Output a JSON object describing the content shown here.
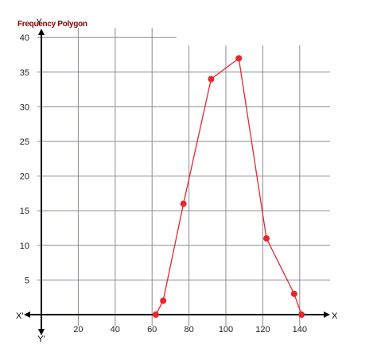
{
  "chart_data": {
    "type": "line",
    "title": "Frequency Polygon",
    "axis_names": {
      "x_pos": "X",
      "x_neg": "X'",
      "y_pos": "Y",
      "y_neg": "Y'"
    },
    "xlim": [
      0,
      140
    ],
    "ylim": [
      0,
      40
    ],
    "x_ticks": [
      "20",
      "40",
      "60",
      "80",
      "100",
      "120",
      "140"
    ],
    "y_ticks": [
      "5",
      "10",
      "15",
      "20",
      "25",
      "30",
      "35",
      "40"
    ],
    "grid": true,
    "series": [
      {
        "color": "#e8262c",
        "points": [
          {
            "x": 62,
            "y": 0
          },
          {
            "x": 66,
            "y": 2
          },
          {
            "x": 77,
            "y": 16
          },
          {
            "x": 92,
            "y": 34
          },
          {
            "x": 107,
            "y": 37
          },
          {
            "x": 122,
            "y": 11
          },
          {
            "x": 137,
            "y": 3
          },
          {
            "x": 141,
            "y": 0
          }
        ]
      }
    ]
  }
}
